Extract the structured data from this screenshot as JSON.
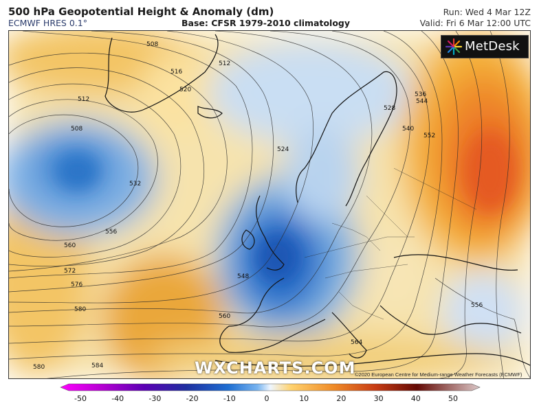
{
  "header": {
    "title": "500 hPa Geopotential Height & Anomaly (dm)",
    "model": "ECMWF HRES 0.1°",
    "base": "Base: CFSR 1979-2010 climatology",
    "run": "Run: Wed 4 Mar 12Z",
    "valid": "Valid: Fri 6 Mar 12:00 UTC"
  },
  "logo": {
    "text": "MetDesk",
    "icon": "metdesk-starburst-icon"
  },
  "watermark": "WXCHARTS.COM",
  "copyright": "©2020 European Centre for Medium-range Weather Forecasts (ECMWF)",
  "contour_labels": [
    "508",
    "512",
    "516",
    "520",
    "524",
    "528",
    "532",
    "536",
    "540",
    "544",
    "548",
    "552",
    "556",
    "560",
    "564",
    "572",
    "576",
    "580",
    "584"
  ],
  "colorbar": {
    "ticks": [
      "-50",
      "-40",
      "-30",
      "-20",
      "-10",
      "0",
      "10",
      "20",
      "30",
      "40",
      "50"
    ],
    "colors": [
      "#ff00ff",
      "#b400d2",
      "#5a00b4",
      "#1e2fa0",
      "#1e6ed2",
      "#78b4f0",
      "#eef6ff",
      "#ffd26e",
      "#f08c28",
      "#c83c14",
      "#640a05",
      "#dcc8c8"
    ]
  }
}
